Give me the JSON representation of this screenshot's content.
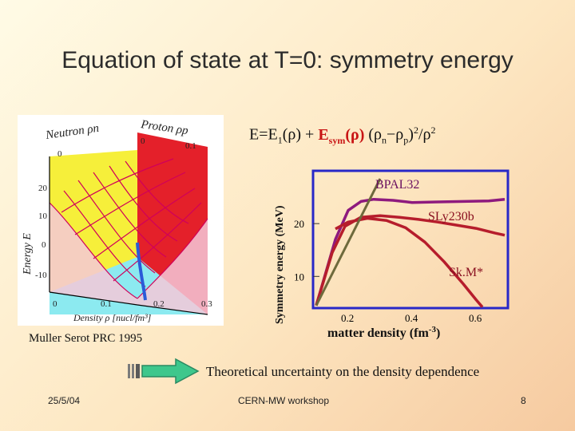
{
  "slide": {
    "title": "Equation of state at T=0:  symmetry energy",
    "formula": {
      "lhs": "E=E",
      "sub1": "1",
      "rho_term": "(ρ) + ",
      "esym": "E",
      "esym_sub": "sym",
      "esym_arg": "(ρ)",
      "diff": " (ρ",
      "sub_n": "n",
      "minus": "−ρ",
      "sub_p": "p",
      "close": ")",
      "sq": "2",
      "over": "/ρ",
      "sq2": "2"
    },
    "citation": "Muller Serot PRC 1995",
    "footer_note": "Theoretical uncertainty on the  density dependence",
    "date": "25/5/04",
    "event": "CERN-MW workshop",
    "page_number": "8"
  },
  "surface_plot": {
    "top_label_neutron": "Neutron ρn",
    "top_label_proton": "Proton ρp",
    "axis_energy": "Energy  E",
    "axis_density": "Density ρ [nucl/fm³]",
    "energy_ticks": [
      "20",
      "10",
      "0",
      "-10"
    ],
    "density_ticks": [
      "0",
      "0.1",
      "0.2",
      "0.3"
    ],
    "top_ticks": [
      "0",
      "0",
      "0.1"
    ],
    "colors": {
      "yellow_wall": "#f6f03a",
      "red_wall": "#e4202a",
      "cyan_floor": "#7fe8ee",
      "mesh": "#d0005a",
      "blue_curve": "#2a5bd8"
    }
  },
  "chart_data": {
    "type": "line",
    "ylabel": "Symmetry energy (MeV)",
    "xlabel": "matter density (fm",
    "xlabel_sup": "-3",
    "xlabel_end": ")",
    "xlim": [
      0.09,
      0.7
    ],
    "ylim": [
      4,
      30
    ],
    "x_ticks": [
      "0.2",
      "0.4",
      "0.6"
    ],
    "x_tick_values": [
      0.2,
      0.4,
      0.6
    ],
    "y_ticks": [
      "20",
      "10"
    ],
    "y_tick_values": [
      20,
      10
    ],
    "series": [
      {
        "name": "BPAL32",
        "color": "#8e1a7e",
        "x": [
          0.1,
          0.16,
          0.2,
          0.24,
          0.28,
          0.34,
          0.4,
          0.48,
          0.56,
          0.64,
          0.69
        ],
        "y": [
          4.5,
          17.0,
          22.5,
          24.2,
          24.6,
          24.4,
          24.0,
          24.1,
          24.2,
          24.3,
          24.6
        ]
      },
      {
        "name": "SLy230b",
        "color": "#b61d2c",
        "x": [
          0.1,
          0.15,
          0.19,
          0.24,
          0.3,
          0.36,
          0.42,
          0.48,
          0.54,
          0.6,
          0.66,
          0.69
        ],
        "y": [
          4.5,
          14.5,
          19.5,
          21.2,
          21.5,
          21.2,
          20.8,
          20.3,
          19.7,
          19.1,
          18.2,
          17.8
        ]
      },
      {
        "name": "Sk.M*",
        "color": "#b61d2c",
        "x": [
          0.16,
          0.2,
          0.26,
          0.32,
          0.38,
          0.44,
          0.5,
          0.56,
          0.6,
          0.62
        ],
        "y": [
          19.0,
          20.3,
          21.0,
          20.6,
          19.2,
          16.5,
          12.8,
          8.6,
          5.6,
          4.2
        ]
      },
      {
        "name": "",
        "color": "#6e6a3c",
        "x": [
          0.1,
          0.3
        ],
        "y": [
          4.5,
          28.5
        ]
      }
    ]
  }
}
